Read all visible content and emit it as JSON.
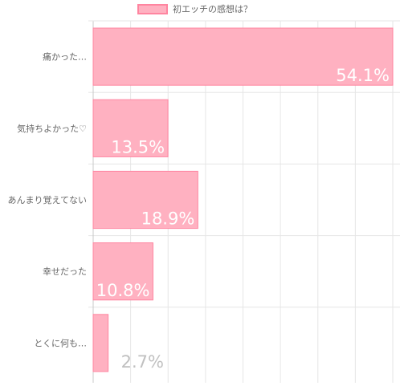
{
  "chart_data": {
    "type": "bar",
    "orientation": "horizontal",
    "title": "",
    "xlabel": "",
    "ylabel": "",
    "legend": {
      "label": "初エッチの感想は？",
      "position": "top-center"
    },
    "categories": [
      "痛かった…",
      "気持ちよかった♡",
      "あんまり覚えてない",
      "幸せだった",
      "とくに何も…"
    ],
    "values": [
      54.1,
      13.5,
      18.9,
      10.8,
      2.7
    ],
    "data_labels": [
      "54.1%",
      "13.5%",
      "18.9%",
      "10.8%",
      "2.7%"
    ],
    "xlim": [
      0,
      54.1
    ],
    "grid": true,
    "colors": {
      "bar_fill": "#ffb1c1",
      "bar_stroke": "#ff85a0",
      "grid": "#e6e6e6",
      "axis": "#c8c8c8",
      "tick_label": "#666666",
      "data_label_inside": "#ffffff",
      "data_label_outside": "#c0c0c0"
    }
  }
}
